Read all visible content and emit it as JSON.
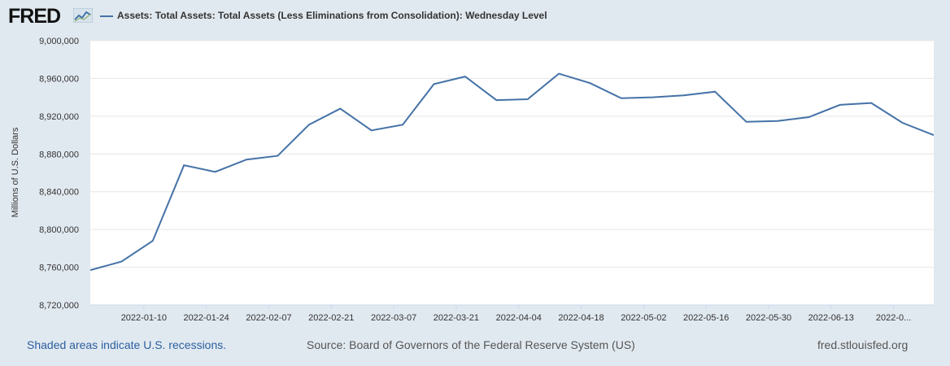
{
  "header": {
    "logo_text": "FRED",
    "logo_icon": "chart-line-icon",
    "legend_label": "Assets: Total Assets: Total Assets (Less Eliminations from Consolidation): Wednesday Level"
  },
  "footer": {
    "recession_note": "Shaded areas indicate U.S. recessions.",
    "source": "Source: Board of Governors of the Federal Reserve System (US)",
    "site": "fred.stlouisfed.org"
  },
  "colors": {
    "line": "#4572a7",
    "plot_bg": "#ffffff",
    "page_bg": "#e1e9f0",
    "grid": "#e6e6e6"
  },
  "chart_data": {
    "type": "line",
    "title": "Assets: Total Assets: Total Assets (Less Eliminations from Consolidation): Wednesday Level",
    "xlabel": "",
    "ylabel": "Millions of U.S. Dollars",
    "ylim": [
      8720000,
      9000000
    ],
    "yticks": [
      8720000,
      8760000,
      8800000,
      8840000,
      8880000,
      8920000,
      8960000,
      9000000
    ],
    "ytick_labels": [
      "8,720,000",
      "8,760,000",
      "8,800,000",
      "8,840,000",
      "8,880,000",
      "8,920,000",
      "8,960,000",
      "9,000,000"
    ],
    "xticks": [
      "2022-01-10",
      "2022-01-24",
      "2022-02-07",
      "2022-02-21",
      "2022-03-07",
      "2022-03-21",
      "2022-04-04",
      "2022-04-18",
      "2022-05-02",
      "2022-05-16",
      "2022-05-30",
      "2022-06-13",
      "2022-06-27"
    ],
    "xtick_labels": [
      "2022-01-10",
      "2022-01-24",
      "2022-02-07",
      "2022-02-21",
      "2022-03-07",
      "2022-03-21",
      "2022-04-04",
      "2022-04-18",
      "2022-05-02",
      "2022-05-16",
      "2022-05-30",
      "2022-06-13",
      "2022-0..."
    ],
    "x_range": [
      "2021-12-29",
      "2022-07-06"
    ],
    "series": [
      {
        "name": "Assets: Total Assets: Total Assets (Less Eliminations from Consolidation): Wednesday Level",
        "x": [
          "2021-12-29",
          "2022-01-05",
          "2022-01-12",
          "2022-01-19",
          "2022-01-26",
          "2022-02-02",
          "2022-02-09",
          "2022-02-16",
          "2022-02-23",
          "2022-03-02",
          "2022-03-09",
          "2022-03-16",
          "2022-03-23",
          "2022-03-30",
          "2022-04-06",
          "2022-04-13",
          "2022-04-20",
          "2022-04-27",
          "2022-05-04",
          "2022-05-11",
          "2022-05-18",
          "2022-05-25",
          "2022-06-01",
          "2022-06-08",
          "2022-06-15",
          "2022-06-22",
          "2022-06-29",
          "2022-07-06"
        ],
        "values": [
          8757000,
          8766000,
          8788000,
          8868000,
          8861000,
          8874000,
          8878000,
          8911000,
          8928000,
          8905000,
          8911000,
          8954000,
          8962000,
          8937000,
          8938000,
          8965000,
          8955000,
          8939000,
          8940000,
          8942000,
          8946000,
          8914000,
          8915000,
          8919000,
          8932000,
          8934000,
          8913000,
          8900000
        ]
      }
    ]
  }
}
